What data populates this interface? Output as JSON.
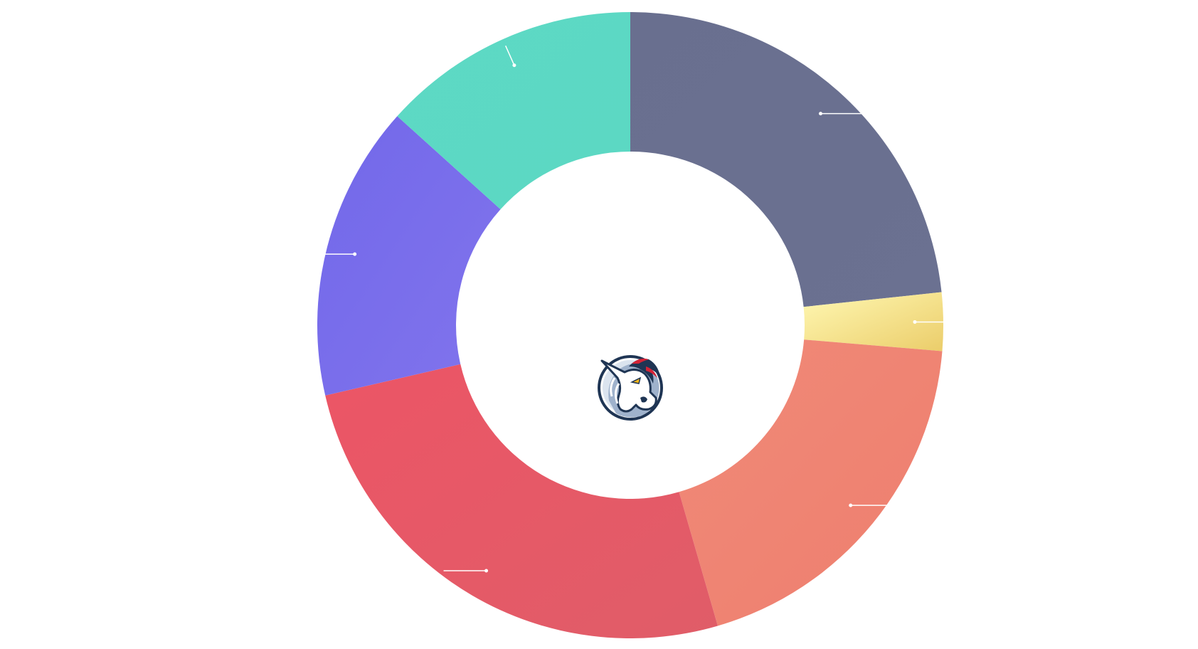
{
  "chart_data": {
    "type": "pie",
    "variant": "donut",
    "title": "",
    "legend": "none",
    "labels_visible": false,
    "center_icon": "unicorn-logo",
    "slices": [
      {
        "id": "slate",
        "value": 22.5,
        "color": "#6a7090",
        "gradient": [
          "#696f8f",
          "#6b7191"
        ]
      },
      {
        "id": "yellow",
        "value": 2.9,
        "color": "#f3dc8a",
        "gradient": [
          "#fff8b3",
          "#ebcd6a"
        ]
      },
      {
        "id": "salmon",
        "value": 18.5,
        "color": "#ef8574",
        "gradient": [
          "#f08a78",
          "#ee7e6e"
        ]
      },
      {
        "id": "red",
        "value": 25.0,
        "color": "#e85a68",
        "gradient": [
          "#ec5566",
          "#e05d68"
        ]
      },
      {
        "id": "purple",
        "value": 14.7,
        "color": "#7a70ea",
        "gradient": [
          "#7268ea",
          "#8174ec"
        ]
      },
      {
        "id": "teal",
        "value": 12.9,
        "color": "#5dd9c4",
        "gradient": [
          "#5dd9c4",
          "#5cd8c3"
        ]
      }
    ]
  }
}
